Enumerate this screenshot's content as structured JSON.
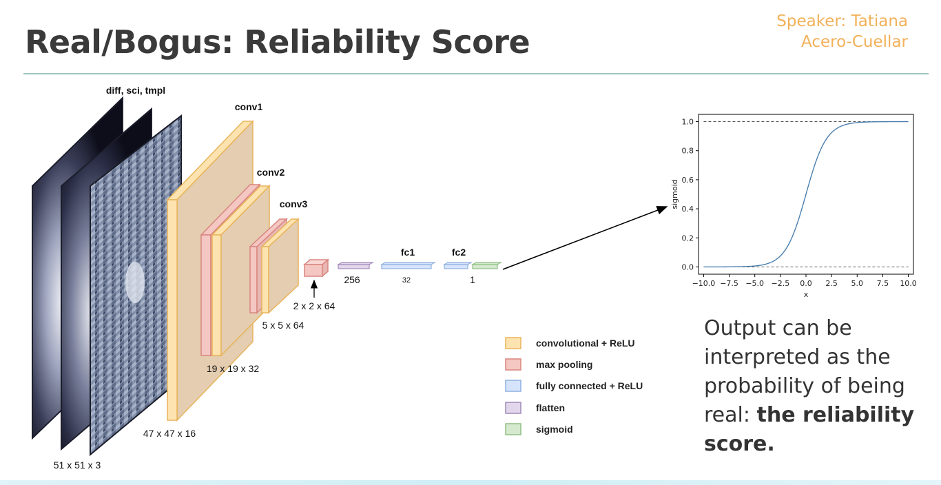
{
  "slide": {
    "title": "Real/Bogus: Reliability Score",
    "speaker_line1": "Speaker: Tatiana",
    "speaker_line2": "Acero-Cuellar"
  },
  "network": {
    "input_label": "diff, sci, tmpl",
    "input_dims": "51 x 51 x 3",
    "conv1_label": "conv1",
    "conv1_dims": "47 x 47 x 16",
    "conv2_label": "conv2",
    "conv2_dims": "19 x 19 x 32",
    "conv3_label": "conv3",
    "conv3_dims": "5 x 5 x 64",
    "pool_dims": "2 x 2 x 64",
    "flatten_dims": "256",
    "fc1_label": "fc1",
    "fc1_dims": "32",
    "fc2_label": "fc2",
    "fc2_dims": "1"
  },
  "legend": [
    {
      "label": "convolutional + ReLU",
      "color": "#fde3b0",
      "edge": "#e8b45a"
    },
    {
      "label": "max pooling",
      "color": "#f4c7c3",
      "edge": "#d9857f"
    },
    {
      "label": "fully connected + ReLU",
      "color": "#d6e4fb",
      "edge": "#8fb0e0"
    },
    {
      "label": "flatten",
      "color": "#e2d6ec",
      "edge": "#a08ab8"
    },
    {
      "label": "sigmoid",
      "color": "#d5e9cf",
      "edge": "#8fbf84"
    }
  ],
  "chart_data": {
    "type": "line",
    "function": "sigmoid",
    "xlabel": "x",
    "ylabel": "sigmoid",
    "xlim": [
      -10.5,
      10.5
    ],
    "ylim": [
      -0.05,
      1.05
    ],
    "xticks": [
      -10.0,
      -7.5,
      -5.0,
      -2.5,
      0.0,
      2.5,
      5.0,
      7.5,
      10.0
    ],
    "xtick_labels": [
      "−10.0",
      "−7.5",
      "−5.0",
      "−2.5",
      "0.0",
      "2.5",
      "5.0",
      "7.5",
      "10.0"
    ],
    "yticks": [
      0.0,
      0.2,
      0.4,
      0.6,
      0.8,
      1.0
    ],
    "ytick_labels": [
      "0.0",
      "0.2",
      "0.4",
      "0.6",
      "0.8",
      "1.0"
    ],
    "x_range": [
      -10.0,
      10.0
    ],
    "reference_lines": [
      0.0,
      1.0
    ],
    "line_color": "#4a7fae"
  },
  "output": {
    "text_plain": "Output  can be interpreted as the probability of being real: ",
    "text_bold": "the reliability score."
  }
}
